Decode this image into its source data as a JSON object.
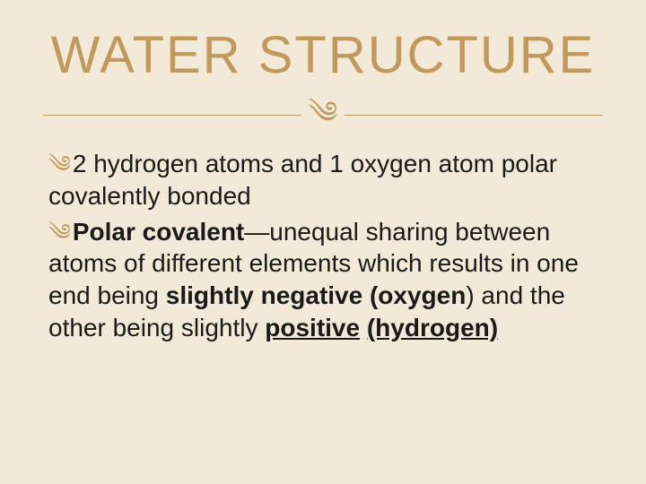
{
  "colors": {
    "background": "#f2e9d8",
    "accent": "#c19a5b",
    "text": "#1a1a1a"
  },
  "typography": {
    "title_fontsize": 58,
    "body_fontsize": 28,
    "title_letter_spacing": 2
  },
  "title": "WATER STRUCTURE",
  "divider_ornament": "༄",
  "bullets": [
    {
      "marker": "༄",
      "runs": [
        {
          "text": "2 hydrogen atoms and 1 oxygen atom polar covalently bonded",
          "bold": false,
          "underline": false
        }
      ]
    },
    {
      "marker": "༄",
      "runs": [
        {
          "text": "Polar covalent",
          "bold": true,
          "underline": false
        },
        {
          "text": "—unequal sharing between atoms of different elements which results in one end being ",
          "bold": false,
          "underline": false
        },
        {
          "text": "slightly negative (oxygen",
          "bold": true,
          "underline": false
        },
        {
          "text": ") and the other being slightly ",
          "bold": false,
          "underline": false
        },
        {
          "text": "positive",
          "bold": true,
          "underline": true
        },
        {
          "text": " ",
          "bold": true,
          "underline": false
        },
        {
          "text": "(hydrogen)",
          "bold": true,
          "underline": true
        }
      ]
    }
  ]
}
